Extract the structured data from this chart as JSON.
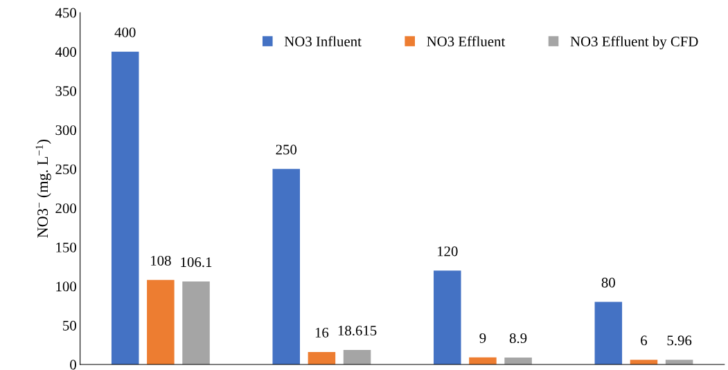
{
  "chart_data": {
    "type": "bar",
    "ylabel": "NO3$^{−}$ (mg. L$^{−1}$)",
    "categories": [
      null,
      null,
      null,
      null
    ],
    "series": [
      {
        "name": "NO3 Influent",
        "color": "#4472c4",
        "values": [
          400,
          250,
          120,
          80
        ]
      },
      {
        "name": "NO3 Effluent",
        "color": "#ed7d31",
        "values": [
          108,
          16,
          9,
          6
        ]
      },
      {
        "name": "NO3 Effluent by CFD",
        "color": "#a5a5a5",
        "values": [
          106.1,
          18.615,
          8.9,
          5.96
        ]
      }
    ],
    "ylim": [
      0,
      450
    ],
    "yticks": [
      0,
      50,
      100,
      150,
      200,
      250,
      300,
      350,
      400,
      450
    ],
    "data_labels": true,
    "grid": false,
    "legend": "top right",
    "tick_labels": "y"
  }
}
